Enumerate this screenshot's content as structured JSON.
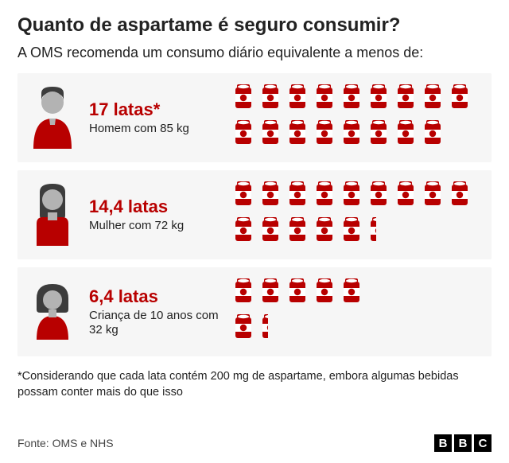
{
  "type": "infographic",
  "background_color": "#ffffff",
  "text_color": "#222222",
  "row_background": "#f6f6f6",
  "accent_color": "#b80000",
  "person_skin": "#b3b3b3",
  "person_hair": "#3c3c3c",
  "title": "Quanto de aspartame é seguro consumir?",
  "subtitle": "A OMS recomenda um consumo diário equivalente a menos de:",
  "title_fontsize": 24,
  "subtitle_fontsize": 18,
  "qty_fontsize": 22,
  "who_fontsize": 15,
  "footnote_fontsize": 14.5,
  "rows": [
    {
      "avatar": "man",
      "qty_label": "17 latas*",
      "who_label": "Homem com 85 kg",
      "cans": 17,
      "per_row": 9
    },
    {
      "avatar": "woman",
      "qty_label": "14,4 latas",
      "who_label": "Mulher com 72 kg",
      "cans": 14.4,
      "per_row": 9
    },
    {
      "avatar": "child",
      "qty_label": "6,4 latas",
      "who_label": "Criança de 10 anos com 32 kg",
      "cans": 6.4,
      "per_row": 5
    }
  ],
  "footnote": "*Considerando que cada lata contém 200 mg de aspartame, embora algumas bebidas possam conter mais do que isso",
  "source_label": "Fonte: OMS e NHS",
  "logo_letters": [
    "B",
    "B",
    "C"
  ]
}
